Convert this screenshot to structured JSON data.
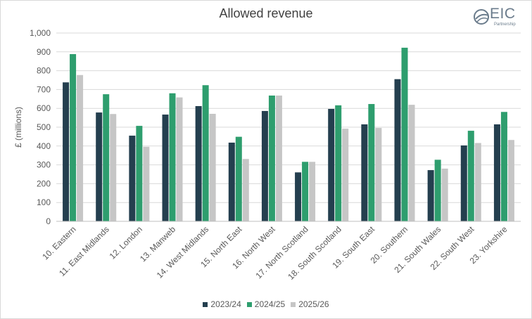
{
  "chart_data": {
    "type": "bar",
    "title": "Allowed revenue",
    "ylabel": "£ (millions)",
    "xlabel": "",
    "ylim": [
      0,
      1000
    ],
    "yticks": [
      "0",
      "100",
      "200",
      "300",
      "400",
      "500",
      "600",
      "700",
      "800",
      "900",
      "1,000"
    ],
    "grid": true,
    "legend_position": "bottom",
    "categories": [
      "10. Eastern",
      "11. East Midlands",
      "12. London",
      "13. Manweb",
      "14. West Midlands",
      "15. North East",
      "16. North West",
      "17. North Scotland",
      "18. South Scotland",
      "19. South East",
      "20. Southern",
      "21. South Wales",
      "22. South West",
      "23. Yorkshire"
    ],
    "series": [
      {
        "name": "2023/24",
        "color": "#243f4f",
        "values": [
          738,
          578,
          455,
          567,
          612,
          418,
          586,
          260,
          597,
          515,
          755,
          272,
          403,
          515
        ]
      },
      {
        "name": "2024/25",
        "color": "#2e9e6e",
        "values": [
          888,
          675,
          507,
          680,
          723,
          449,
          668,
          316,
          616,
          623,
          922,
          327,
          481,
          581
        ]
      },
      {
        "name": "2025/26",
        "color": "#c6c6c6",
        "values": [
          777,
          570,
          396,
          658,
          571,
          331,
          668,
          316,
          492,
          496,
          619,
          280,
          416,
          432
        ]
      }
    ]
  },
  "logo": {
    "text": "EIC",
    "subtext": "Partnership"
  }
}
